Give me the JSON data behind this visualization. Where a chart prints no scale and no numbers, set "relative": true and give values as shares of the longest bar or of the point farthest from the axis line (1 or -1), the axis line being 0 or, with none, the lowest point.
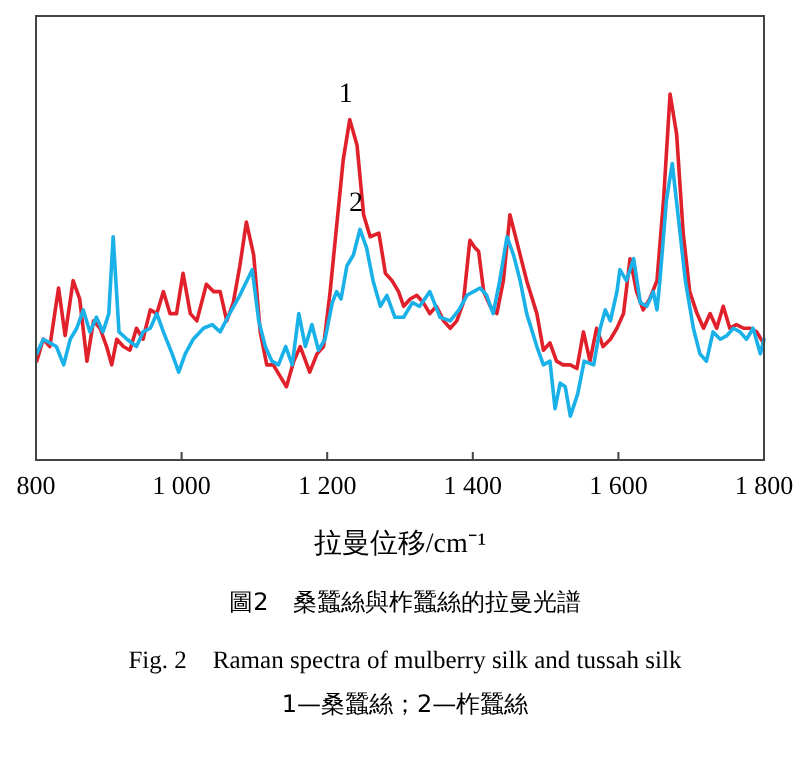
{
  "chart_data": {
    "type": "line",
    "relative": true,
    "title": "圖2　桑蠶絲與柞蠶絲的拉曼光譜",
    "subtitle": "Fig. 2　Raman spectra of mulberry silk and tussah silk",
    "xlabel": "拉曼位移/cm⁻¹",
    "xlim": [
      800,
      1800
    ],
    "xticks": [
      800,
      {
        "value": 1000,
        "label": "1 000"
      },
      {
        "value": 1200,
        "label": "1 200"
      },
      {
        "value": 1400,
        "label": "1 400"
      },
      {
        "value": 1600,
        "label": "1 600"
      },
      {
        "value": 1800,
        "label": "1 800"
      }
    ],
    "line_style": "solid",
    "annotations": [
      {
        "text": "1",
        "x": 1231,
        "y": 0.93
      },
      {
        "text": "2",
        "x": 1245,
        "y": 0.63
      },
      "1—桑蠶絲；2—柞蠶絲"
    ],
    "series": [
      {
        "color": "#e0202a",
        "x": [
          801,
          810,
          819,
          831,
          840,
          851,
          860,
          870,
          879,
          888,
          897,
          904,
          911,
          920,
          929,
          938,
          947,
          957,
          966,
          975,
          984,
          993,
          1002,
          1012,
          1021,
          1034,
          1044,
          1053,
          1062,
          1071,
          1080,
          1089,
          1099,
          1108,
          1117,
          1126,
          1135,
          1144,
          1154,
          1163,
          1176,
          1186,
          1195,
          1204,
          1213,
          1222,
          1231,
          1241,
          1250,
          1259,
          1271,
          1280,
          1289,
          1298,
          1305,
          1314,
          1323,
          1332,
          1341,
          1350,
          1360,
          1369,
          1378,
          1387,
          1396,
          1403,
          1408,
          1415,
          1424,
          1433,
          1442,
          1451,
          1460,
          1474,
          1488,
          1497,
          1506,
          1515,
          1524,
          1534,
          1543,
          1552,
          1561,
          1570,
          1579,
          1589,
          1598,
          1607,
          1616,
          1625,
          1634,
          1643,
          1653,
          1662,
          1671,
          1680,
          1689,
          1698,
          1708,
          1717,
          1726,
          1735,
          1744,
          1753,
          1762,
          1772,
          1781,
          1790,
          1799
        ],
        "values": [
          0.27,
          0.33,
          0.31,
          0.47,
          0.34,
          0.49,
          0.44,
          0.27,
          0.38,
          0.36,
          0.31,
          0.26,
          0.33,
          0.31,
          0.3,
          0.36,
          0.33,
          0.41,
          0.4,
          0.46,
          0.4,
          0.4,
          0.51,
          0.4,
          0.38,
          0.48,
          0.46,
          0.46,
          0.38,
          0.43,
          0.53,
          0.65,
          0.56,
          0.35,
          0.26,
          0.26,
          0.23,
          0.2,
          0.27,
          0.31,
          0.24,
          0.29,
          0.31,
          0.46,
          0.64,
          0.82,
          0.93,
          0.86,
          0.67,
          0.61,
          0.62,
          0.51,
          0.49,
          0.46,
          0.42,
          0.44,
          0.45,
          0.43,
          0.4,
          0.42,
          0.38,
          0.36,
          0.38,
          0.43,
          0.6,
          0.58,
          0.57,
          0.46,
          0.42,
          0.4,
          0.49,
          0.67,
          0.6,
          0.49,
          0.4,
          0.3,
          0.32,
          0.27,
          0.26,
          0.26,
          0.25,
          0.35,
          0.27,
          0.36,
          0.31,
          0.33,
          0.36,
          0.4,
          0.55,
          0.46,
          0.41,
          0.44,
          0.49,
          0.71,
          1.0,
          0.89,
          0.62,
          0.46,
          0.4,
          0.36,
          0.4,
          0.36,
          0.42,
          0.36,
          0.37,
          0.36,
          0.36,
          0.35,
          0.32
        ]
      },
      {
        "color": "#1ab0e8",
        "x": [
          801,
          810,
          819,
          828,
          838,
          847,
          856,
          865,
          874,
          883,
          892,
          900,
          906,
          914,
          925,
          938,
          947,
          957,
          966,
          975,
          987,
          996,
          1005,
          1016,
          1030,
          1042,
          1053,
          1066,
          1080,
          1097,
          1106,
          1115,
          1124,
          1133,
          1143,
          1152,
          1161,
          1170,
          1179,
          1188,
          1197,
          1207,
          1213,
          1219,
          1227,
          1236,
          1245,
          1254,
          1263,
          1273,
          1282,
          1293,
          1305,
          1317,
          1327,
          1341,
          1355,
          1369,
          1381,
          1392,
          1401,
          1410,
          1419,
          1428,
          1437,
          1447,
          1456,
          1465,
          1474,
          1488,
          1497,
          1506,
          1513,
          1520,
          1527,
          1534,
          1544,
          1553,
          1566,
          1575,
          1582,
          1589,
          1598,
          1602,
          1611,
          1621,
          1630,
          1639,
          1648,
          1653,
          1657,
          1666,
          1674,
          1683,
          1692,
          1703,
          1712,
          1721,
          1730,
          1740,
          1749,
          1758,
          1767,
          1776,
          1785,
          1795,
          1800
        ],
        "values": [
          0.29,
          0.33,
          0.32,
          0.31,
          0.26,
          0.33,
          0.36,
          0.41,
          0.35,
          0.39,
          0.35,
          0.4,
          0.61,
          0.35,
          0.33,
          0.31,
          0.35,
          0.36,
          0.4,
          0.35,
          0.29,
          0.24,
          0.29,
          0.33,
          0.36,
          0.37,
          0.35,
          0.4,
          0.45,
          0.52,
          0.38,
          0.31,
          0.27,
          0.26,
          0.31,
          0.26,
          0.4,
          0.31,
          0.37,
          0.3,
          0.33,
          0.43,
          0.46,
          0.44,
          0.53,
          0.56,
          0.63,
          0.58,
          0.49,
          0.42,
          0.45,
          0.39,
          0.39,
          0.43,
          0.42,
          0.46,
          0.39,
          0.38,
          0.41,
          0.45,
          0.46,
          0.47,
          0.45,
          0.4,
          0.49,
          0.61,
          0.56,
          0.49,
          0.4,
          0.31,
          0.26,
          0.27,
          0.14,
          0.21,
          0.2,
          0.12,
          0.18,
          0.27,
          0.26,
          0.36,
          0.41,
          0.38,
          0.46,
          0.52,
          0.49,
          0.55,
          0.43,
          0.42,
          0.46,
          0.41,
          0.49,
          0.71,
          0.81,
          0.65,
          0.49,
          0.36,
          0.29,
          0.27,
          0.35,
          0.33,
          0.34,
          0.36,
          0.35,
          0.33,
          0.36,
          0.29,
          0.33
        ]
      }
    ]
  }
}
